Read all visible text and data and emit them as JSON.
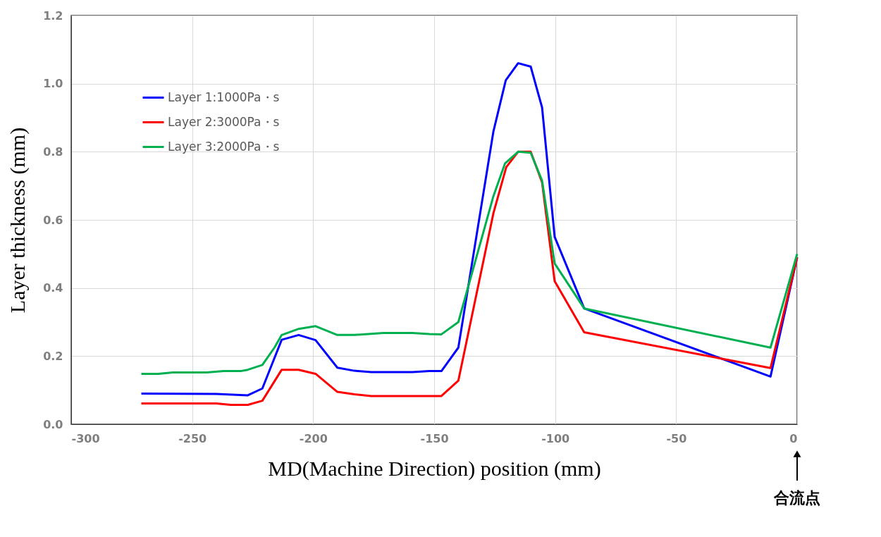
{
  "chart_data": {
    "type": "line",
    "xlabel": "MD(Machine Direction) position (mm)",
    "ylabel": "Layer thickness (mm)",
    "xlim": [
      -300,
      0
    ],
    "xticks": [
      -300,
      -250,
      -200,
      -150,
      -100,
      -50,
      0
    ],
    "ylim": [
      0,
      1.2
    ],
    "yticks": [
      {
        "value": 0,
        "label": "0.0"
      },
      {
        "value": 0.2,
        "label": "0.2"
      },
      {
        "value": 0.4,
        "label": "0.4"
      },
      {
        "value": 0.6,
        "label": "0.6"
      },
      {
        "value": 0.8,
        "label": "0.8"
      },
      {
        "value": 1.0,
        "label": "1.0"
      },
      {
        "value": 1.2,
        "label": "1.2"
      }
    ],
    "grid": true,
    "legend": "top left",
    "marker": "none",
    "line_style": "solid",
    "annotations": [
      "合流点"
    ],
    "series": [
      {
        "name": "Layer 1:1000Pa・s",
        "color": "#0000ff",
        "x": [
          -271,
          -240,
          -227,
          -221,
          -213,
          -206,
          -199,
          -190,
          -183,
          -176,
          -159,
          -152,
          -147,
          -140,
          -125.5,
          -120.4,
          -115.3,
          -110.1,
          -105.4,
          -100.2,
          -88,
          -11,
          0
        ],
        "values": [
          0.09,
          0.089,
          0.085,
          0.105,
          0.248,
          0.262,
          0.247,
          0.166,
          0.157,
          0.153,
          0.153,
          0.156,
          0.156,
          0.225,
          0.86,
          1.01,
          1.06,
          1.05,
          0.93,
          0.55,
          0.34,
          0.14,
          0.49
        ]
      },
      {
        "name": "Layer 2:3000Pa・s",
        "color": "#ff0000",
        "x": [
          -271,
          -240,
          -234,
          -227,
          -221,
          -213,
          -206,
          -199,
          -190,
          -183,
          -176,
          -147,
          -140,
          -125.5,
          -120.2,
          -115.3,
          -110.1,
          -105.4,
          -100.2,
          -88,
          -11,
          0
        ],
        "values": [
          0.061,
          0.061,
          0.057,
          0.057,
          0.069,
          0.16,
          0.16,
          0.148,
          0.095,
          0.088,
          0.083,
          0.083,
          0.128,
          0.62,
          0.755,
          0.8,
          0.8,
          0.71,
          0.42,
          0.27,
          0.165,
          0.49
        ]
      },
      {
        "name": "Layer 3:2000Pa・s",
        "color": "#00b050",
        "x": [
          -271,
          -264,
          -258,
          -244,
          -237,
          -230,
          -227,
          -221,
          -216,
          -213,
          -206,
          -199,
          -190,
          -183,
          -171,
          -159,
          -152,
          -147,
          -140,
          -125.5,
          -120.7,
          -115.3,
          -110.1,
          -105.4,
          -100.2,
          -88,
          -11,
          0
        ],
        "values": [
          0.148,
          0.148,
          0.152,
          0.152,
          0.156,
          0.156,
          0.16,
          0.174,
          0.225,
          0.262,
          0.28,
          0.288,
          0.262,
          0.262,
          0.268,
          0.268,
          0.265,
          0.264,
          0.3,
          0.67,
          0.766,
          0.8,
          0.797,
          0.715,
          0.472,
          0.34,
          0.225,
          0.5
        ]
      }
    ]
  }
}
